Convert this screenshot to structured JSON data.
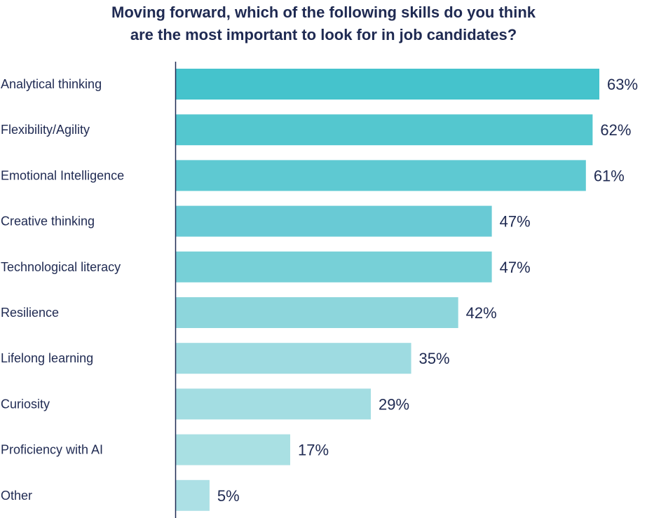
{
  "chart_data": {
    "type": "bar",
    "orientation": "horizontal",
    "title_lines": [
      "Moving forward, which of the following skills do you think",
      "are the most important to look for in job candidates?"
    ],
    "categories": [
      "Analytical thinking",
      "Flexibility/Agility",
      "Emotional Intelligence",
      "Creative thinking",
      "Technological literacy",
      "Resilience",
      "Lifelong learning",
      "Curiosity",
      "Proficiency with AI",
      "Other"
    ],
    "values": [
      63,
      62,
      61,
      47,
      47,
      42,
      35,
      29,
      17,
      5
    ],
    "value_labels": [
      "63%",
      "62%",
      "61%",
      "47%",
      "47%",
      "42%",
      "35%",
      "29%",
      "17%",
      "5%"
    ],
    "bar_colors": [
      "#45c3cc",
      "#54c7cf",
      "#5ec9d2",
      "#69cad5",
      "#77d0d7",
      "#8dd6dc",
      "#9edbe1",
      "#a3dde2",
      "#a9e0e3",
      "#ace0e5"
    ],
    "text_color": "#1f2a52",
    "axis_color": "#1f2a52",
    "grid": false,
    "legend": false
  }
}
